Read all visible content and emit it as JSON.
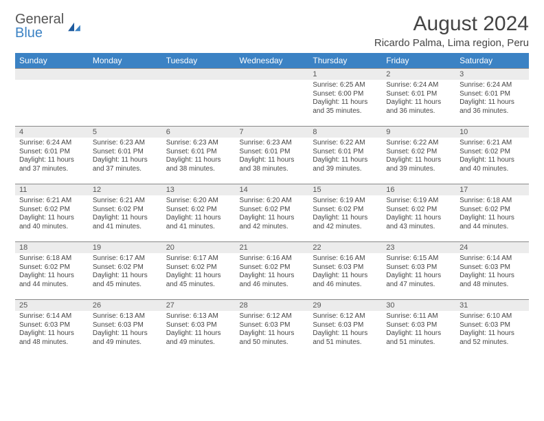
{
  "logo": {
    "line1": "General",
    "line2": "Blue"
  },
  "title": "August 2024",
  "location": "Ricardo Palma, Lima region, Peru",
  "colors": {
    "header_bg": "#3b82c4",
    "header_fg": "#ffffff",
    "daynum_bg": "#ececec",
    "border": "#888888",
    "text": "#444444",
    "logo_blue": "#3b82c4"
  },
  "day_names": [
    "Sunday",
    "Monday",
    "Tuesday",
    "Wednesday",
    "Thursday",
    "Friday",
    "Saturday"
  ],
  "weeks": [
    [
      {
        "n": "",
        "sr": "",
        "ss": "",
        "dl": ""
      },
      {
        "n": "",
        "sr": "",
        "ss": "",
        "dl": ""
      },
      {
        "n": "",
        "sr": "",
        "ss": "",
        "dl": ""
      },
      {
        "n": "",
        "sr": "",
        "ss": "",
        "dl": ""
      },
      {
        "n": "1",
        "sr": "Sunrise: 6:25 AM",
        "ss": "Sunset: 6:00 PM",
        "dl": "Daylight: 11 hours and 35 minutes."
      },
      {
        "n": "2",
        "sr": "Sunrise: 6:24 AM",
        "ss": "Sunset: 6:01 PM",
        "dl": "Daylight: 11 hours and 36 minutes."
      },
      {
        "n": "3",
        "sr": "Sunrise: 6:24 AM",
        "ss": "Sunset: 6:01 PM",
        "dl": "Daylight: 11 hours and 36 minutes."
      }
    ],
    [
      {
        "n": "4",
        "sr": "Sunrise: 6:24 AM",
        "ss": "Sunset: 6:01 PM",
        "dl": "Daylight: 11 hours and 37 minutes."
      },
      {
        "n": "5",
        "sr": "Sunrise: 6:23 AM",
        "ss": "Sunset: 6:01 PM",
        "dl": "Daylight: 11 hours and 37 minutes."
      },
      {
        "n": "6",
        "sr": "Sunrise: 6:23 AM",
        "ss": "Sunset: 6:01 PM",
        "dl": "Daylight: 11 hours and 38 minutes."
      },
      {
        "n": "7",
        "sr": "Sunrise: 6:23 AM",
        "ss": "Sunset: 6:01 PM",
        "dl": "Daylight: 11 hours and 38 minutes."
      },
      {
        "n": "8",
        "sr": "Sunrise: 6:22 AM",
        "ss": "Sunset: 6:01 PM",
        "dl": "Daylight: 11 hours and 39 minutes."
      },
      {
        "n": "9",
        "sr": "Sunrise: 6:22 AM",
        "ss": "Sunset: 6:02 PM",
        "dl": "Daylight: 11 hours and 39 minutes."
      },
      {
        "n": "10",
        "sr": "Sunrise: 6:21 AM",
        "ss": "Sunset: 6:02 PM",
        "dl": "Daylight: 11 hours and 40 minutes."
      }
    ],
    [
      {
        "n": "11",
        "sr": "Sunrise: 6:21 AM",
        "ss": "Sunset: 6:02 PM",
        "dl": "Daylight: 11 hours and 40 minutes."
      },
      {
        "n": "12",
        "sr": "Sunrise: 6:21 AM",
        "ss": "Sunset: 6:02 PM",
        "dl": "Daylight: 11 hours and 41 minutes."
      },
      {
        "n": "13",
        "sr": "Sunrise: 6:20 AM",
        "ss": "Sunset: 6:02 PM",
        "dl": "Daylight: 11 hours and 41 minutes."
      },
      {
        "n": "14",
        "sr": "Sunrise: 6:20 AM",
        "ss": "Sunset: 6:02 PM",
        "dl": "Daylight: 11 hours and 42 minutes."
      },
      {
        "n": "15",
        "sr": "Sunrise: 6:19 AM",
        "ss": "Sunset: 6:02 PM",
        "dl": "Daylight: 11 hours and 42 minutes."
      },
      {
        "n": "16",
        "sr": "Sunrise: 6:19 AM",
        "ss": "Sunset: 6:02 PM",
        "dl": "Daylight: 11 hours and 43 minutes."
      },
      {
        "n": "17",
        "sr": "Sunrise: 6:18 AM",
        "ss": "Sunset: 6:02 PM",
        "dl": "Daylight: 11 hours and 44 minutes."
      }
    ],
    [
      {
        "n": "18",
        "sr": "Sunrise: 6:18 AM",
        "ss": "Sunset: 6:02 PM",
        "dl": "Daylight: 11 hours and 44 minutes."
      },
      {
        "n": "19",
        "sr": "Sunrise: 6:17 AM",
        "ss": "Sunset: 6:02 PM",
        "dl": "Daylight: 11 hours and 45 minutes."
      },
      {
        "n": "20",
        "sr": "Sunrise: 6:17 AM",
        "ss": "Sunset: 6:02 PM",
        "dl": "Daylight: 11 hours and 45 minutes."
      },
      {
        "n": "21",
        "sr": "Sunrise: 6:16 AM",
        "ss": "Sunset: 6:02 PM",
        "dl": "Daylight: 11 hours and 46 minutes."
      },
      {
        "n": "22",
        "sr": "Sunrise: 6:16 AM",
        "ss": "Sunset: 6:03 PM",
        "dl": "Daylight: 11 hours and 46 minutes."
      },
      {
        "n": "23",
        "sr": "Sunrise: 6:15 AM",
        "ss": "Sunset: 6:03 PM",
        "dl": "Daylight: 11 hours and 47 minutes."
      },
      {
        "n": "24",
        "sr": "Sunrise: 6:14 AM",
        "ss": "Sunset: 6:03 PM",
        "dl": "Daylight: 11 hours and 48 minutes."
      }
    ],
    [
      {
        "n": "25",
        "sr": "Sunrise: 6:14 AM",
        "ss": "Sunset: 6:03 PM",
        "dl": "Daylight: 11 hours and 48 minutes."
      },
      {
        "n": "26",
        "sr": "Sunrise: 6:13 AM",
        "ss": "Sunset: 6:03 PM",
        "dl": "Daylight: 11 hours and 49 minutes."
      },
      {
        "n": "27",
        "sr": "Sunrise: 6:13 AM",
        "ss": "Sunset: 6:03 PM",
        "dl": "Daylight: 11 hours and 49 minutes."
      },
      {
        "n": "28",
        "sr": "Sunrise: 6:12 AM",
        "ss": "Sunset: 6:03 PM",
        "dl": "Daylight: 11 hours and 50 minutes."
      },
      {
        "n": "29",
        "sr": "Sunrise: 6:12 AM",
        "ss": "Sunset: 6:03 PM",
        "dl": "Daylight: 11 hours and 51 minutes."
      },
      {
        "n": "30",
        "sr": "Sunrise: 6:11 AM",
        "ss": "Sunset: 6:03 PM",
        "dl": "Daylight: 11 hours and 51 minutes."
      },
      {
        "n": "31",
        "sr": "Sunrise: 6:10 AM",
        "ss": "Sunset: 6:03 PM",
        "dl": "Daylight: 11 hours and 52 minutes."
      }
    ]
  ]
}
